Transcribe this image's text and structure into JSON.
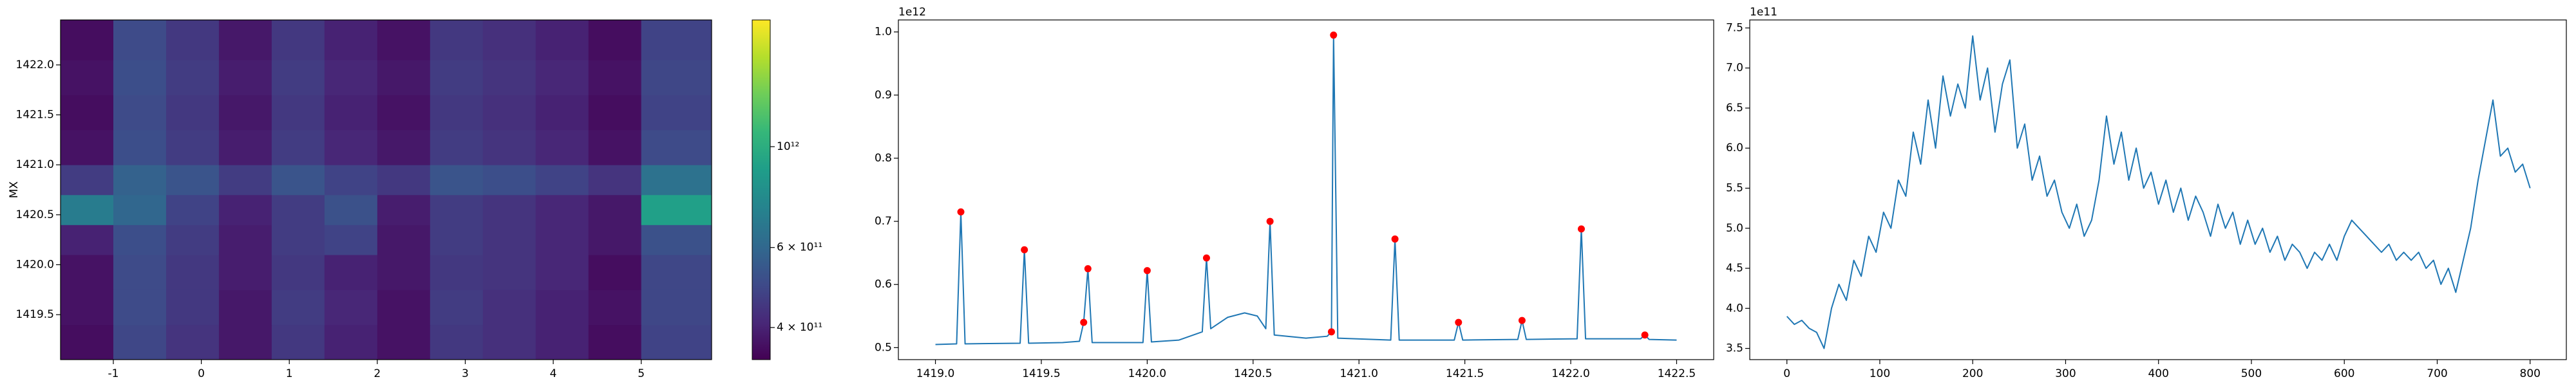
{
  "chart_data": [
    {
      "type": "heatmap",
      "ylabel": "MX",
      "xbins": [
        -1.6,
        -1.0,
        -0.4,
        0.2,
        0.8,
        1.4,
        2.0,
        2.6,
        3.2,
        3.8,
        4.4,
        5.0,
        5.8
      ],
      "ybins": [
        1419.05,
        1419.4,
        1419.75,
        1420.1,
        1420.4,
        1420.7,
        1421.0,
        1421.35,
        1421.7,
        1422.05,
        1422.45
      ],
      "z": [
        [
          360000000000.0,
          490000000000.0,
          440000000000.0,
          380000000000.0,
          450000000000.0,
          400000000000.0,
          370000000000.0,
          450000000000.0,
          430000000000.0,
          400000000000.0,
          360000000000.0,
          480000000000.0
        ],
        [
          370000000000.0,
          500000000000.0,
          450000000000.0,
          380000000000.0,
          460000000000.0,
          410000000000.0,
          370000000000.0,
          460000000000.0,
          430000000000.0,
          400000000000.0,
          370000000000.0,
          490000000000.0
        ],
        [
          370000000000.0,
          500000000000.0,
          450000000000.0,
          390000000000.0,
          450000000000.0,
          400000000000.0,
          380000000000.0,
          450000000000.0,
          440000000000.0,
          410000000000.0,
          360000000000.0,
          490000000000.0
        ],
        [
          400000000000.0,
          510000000000.0,
          460000000000.0,
          390000000000.0,
          460000000000.0,
          480000000000.0,
          380000000000.0,
          460000000000.0,
          440000000000.0,
          410000000000.0,
          380000000000.0,
          520000000000.0
        ],
        [
          700000000000.0,
          600000000000.0,
          480000000000.0,
          400000000000.0,
          460000000000.0,
          520000000000.0,
          390000000000.0,
          460000000000.0,
          440000000000.0,
          410000000000.0,
          380000000000.0,
          900000000000.0
        ],
        [
          460000000000.0,
          580000000000.0,
          530000000000.0,
          460000000000.0,
          530000000000.0,
          480000000000.0,
          450000000000.0,
          530000000000.0,
          510000000000.0,
          480000000000.0,
          440000000000.0,
          650000000000.0
        ],
        [
          370000000000.0,
          510000000000.0,
          460000000000.0,
          390000000000.0,
          460000000000.0,
          410000000000.0,
          380000000000.0,
          460000000000.0,
          440000000000.0,
          410000000000.0,
          370000000000.0,
          500000000000.0
        ],
        [
          360000000000.0,
          500000000000.0,
          450000000000.0,
          380000000000.0,
          450000000000.0,
          400000000000.0,
          370000000000.0,
          450000000000.0,
          430000000000.0,
          400000000000.0,
          360000000000.0,
          480000000000.0
        ],
        [
          370000000000.0,
          510000000000.0,
          460000000000.0,
          390000000000.0,
          460000000000.0,
          410000000000.0,
          380000000000.0,
          460000000000.0,
          440000000000.0,
          410000000000.0,
          370000000000.0,
          490000000000.0
        ],
        [
          360000000000.0,
          500000000000.0,
          450000000000.0,
          380000000000.0,
          450000000000.0,
          400000000000.0,
          370000000000.0,
          450000000000.0,
          430000000000.0,
          400000000000.0,
          360000000000.0,
          480000000000.0
        ]
      ],
      "xlim": [
        -1.6,
        5.8
      ],
      "ylim": [
        1419.05,
        1422.45
      ],
      "xticks": [
        -1,
        0,
        1,
        2,
        3,
        4,
        5
      ],
      "yticks": [
        1419.5,
        {
          "value": 1420,
          "label": "1420.0"
        },
        1420.5,
        {
          "value": 1421,
          "label": "1421.0"
        },
        1421.5,
        {
          "value": 1422,
          "label": "1422.0"
        }
      ],
      "colormap": "viridis",
      "colorbar": {
        "scale": "log",
        "clim": [
          340000000000.0,
          1900000000000.0
        ],
        "ticks": [
          {
            "value": 400000000000.0,
            "label": "4 × 10¹¹"
          },
          {
            "value": 600000000000.0,
            "label": "6 × 10¹¹"
          },
          {
            "value": 1000000000000.0,
            "label": "10¹²"
          }
        ]
      }
    },
    {
      "type": "line",
      "offset_text": "1e12",
      "series": [
        {
          "kind": "line",
          "color": "#1f77b4",
          "x": [
            1419.0,
            1419.1,
            1419.12,
            1419.14,
            1419.4,
            1419.42,
            1419.44,
            1419.6,
            1419.68,
            1419.7,
            1419.72,
            1419.74,
            1419.98,
            1420.0,
            1420.02,
            1420.15,
            1420.26,
            1420.28,
            1420.3,
            1420.38,
            1420.46,
            1420.52,
            1420.56,
            1420.58,
            1420.6,
            1420.75,
            1420.85,
            1420.87,
            1420.88,
            1420.9,
            1421.15,
            1421.17,
            1421.19,
            1421.45,
            1421.47,
            1421.49,
            1421.75,
            1421.77,
            1421.79,
            1422.03,
            1422.05,
            1422.07,
            1422.33,
            1422.35,
            1422.37,
            1422.5
          ],
          "values": [
            0.505,
            0.506,
            0.715,
            0.506,
            0.507,
            0.655,
            0.507,
            0.508,
            0.51,
            0.54,
            0.625,
            0.508,
            0.508,
            0.622,
            0.509,
            0.512,
            0.525,
            0.642,
            0.53,
            0.548,
            0.555,
            0.55,
            0.53,
            0.7,
            0.52,
            0.515,
            0.518,
            0.525,
            0.995,
            0.515,
            0.512,
            0.672,
            0.512,
            0.512,
            0.54,
            0.512,
            0.513,
            0.543,
            0.513,
            0.514,
            0.688,
            0.514,
            0.514,
            0.52,
            0.513,
            0.512
          ]
        },
        {
          "kind": "scatter",
          "color": "#ff0000",
          "x": [
            1419.12,
            1419.42,
            1419.7,
            1419.72,
            1420.0,
            1420.28,
            1420.58,
            1420.87,
            1420.88,
            1421.17,
            1421.47,
            1421.77,
            1422.05,
            1422.35
          ],
          "values": [
            0.715,
            0.655,
            0.54,
            0.625,
            0.622,
            0.642,
            0.7,
            0.525,
            0.995,
            0.672,
            0.54,
            0.543,
            0.688,
            0.52
          ]
        }
      ],
      "xlim": [
        1418.825,
        1422.675
      ],
      "ylim": [
        0.481,
        1.019
      ],
      "xticks": [
        {
          "value": 1419,
          "label": "1419.0"
        },
        1419.5,
        {
          "value": 1420,
          "label": "1420.0"
        },
        1420.5,
        {
          "value": 1421,
          "label": "1421.0"
        },
        1421.5,
        {
          "value": 1422,
          "label": "1422.0"
        },
        1422.5
      ],
      "yticks": [
        0.5,
        0.6,
        0.7,
        0.8,
        0.9,
        {
          "value": 1,
          "label": "1.0"
        }
      ]
    },
    {
      "type": "line",
      "offset_text": "1e11",
      "series": [
        {
          "kind": "line",
          "color": "#1f77b4",
          "x": [
            0,
            8,
            16,
            24,
            32,
            40,
            48,
            56,
            64,
            72,
            80,
            88,
            96,
            104,
            112,
            120,
            128,
            136,
            144,
            152,
            160,
            168,
            176,
            184,
            192,
            200,
            208,
            216,
            224,
            232,
            240,
            248,
            256,
            264,
            272,
            280,
            288,
            296,
            304,
            312,
            320,
            328,
            336,
            344,
            352,
            360,
            368,
            376,
            384,
            392,
            400,
            408,
            416,
            424,
            432,
            440,
            448,
            456,
            464,
            472,
            480,
            488,
            496,
            504,
            512,
            520,
            528,
            536,
            544,
            552,
            560,
            568,
            576,
            584,
            592,
            600,
            608,
            616,
            624,
            632,
            640,
            648,
            656,
            664,
            672,
            680,
            688,
            696,
            704,
            712,
            720,
            728,
            736,
            744,
            752,
            760,
            768,
            776,
            784,
            792,
            800
          ],
          "values": [
            3.9,
            3.8,
            3.85,
            3.75,
            3.7,
            3.5,
            4.0,
            4.3,
            4.1,
            4.6,
            4.4,
            4.9,
            4.7,
            5.2,
            5.0,
            5.6,
            5.4,
            6.2,
            5.8,
            6.6,
            6.0,
            6.9,
            6.4,
            6.8,
            6.5,
            7.4,
            6.6,
            7.0,
            6.2,
            6.8,
            7.1,
            6.0,
            6.3,
            5.6,
            5.9,
            5.4,
            5.6,
            5.2,
            5.0,
            5.3,
            4.9,
            5.1,
            5.6,
            6.4,
            5.8,
            6.2,
            5.6,
            6.0,
            5.5,
            5.7,
            5.3,
            5.6,
            5.2,
            5.5,
            5.1,
            5.4,
            5.2,
            4.9,
            5.3,
            5.0,
            5.2,
            4.8,
            5.1,
            4.8,
            5.0,
            4.7,
            4.9,
            4.6,
            4.8,
            4.7,
            4.5,
            4.7,
            4.6,
            4.8,
            4.6,
            4.9,
            5.1,
            5.0,
            4.9,
            4.8,
            4.7,
            4.8,
            4.6,
            4.7,
            4.6,
            4.7,
            4.5,
            4.6,
            4.3,
            4.5,
            4.2,
            4.6,
            5.0,
            5.6,
            6.1,
            6.6,
            5.9,
            6.0,
            5.7,
            5.8,
            5.5
          ]
        }
      ],
      "xlim": [
        -40,
        839
      ],
      "ylim": [
        3.36,
        7.6
      ],
      "xticks": [
        0,
        100,
        200,
        300,
        400,
        500,
        600,
        700,
        800
      ],
      "yticks": [
        3.5,
        {
          "value": 4,
          "label": "4.0"
        },
        4.5,
        {
          "value": 5,
          "label": "5.0"
        },
        5.5,
        {
          "value": 6,
          "label": "6.0"
        },
        6.5,
        {
          "value": 7,
          "label": "7.0"
        },
        7.5
      ]
    }
  ]
}
